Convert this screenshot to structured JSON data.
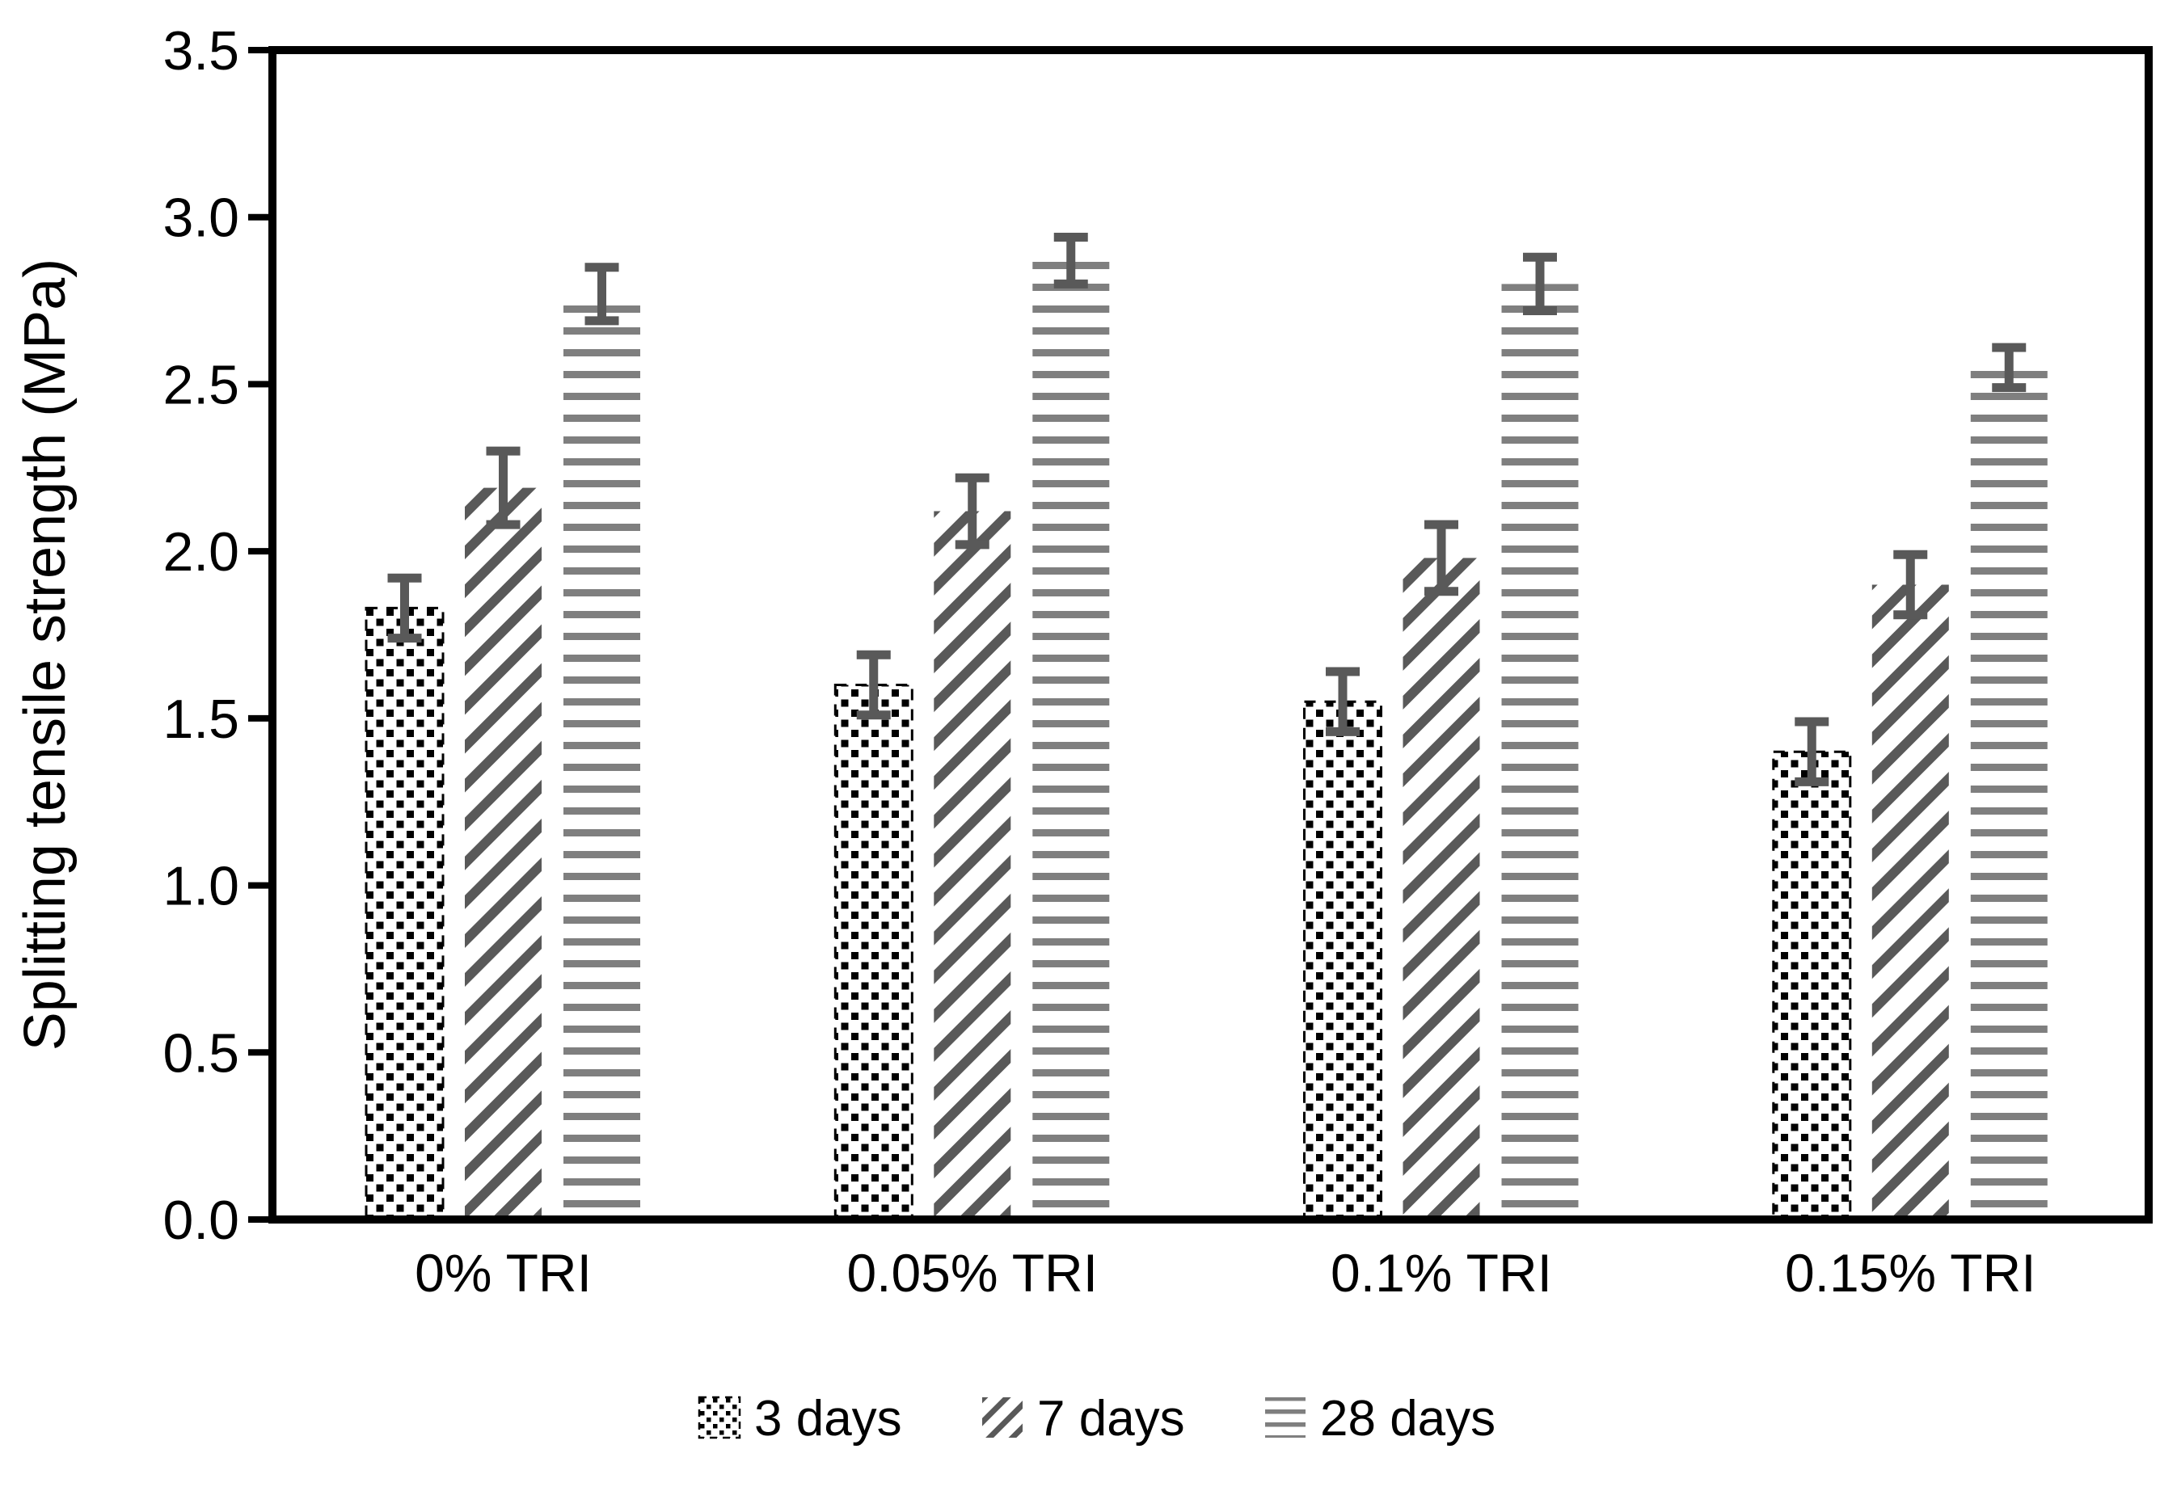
{
  "colors": {
    "black": "#000000",
    "dark_gray": "#595959",
    "mid_gray": "#7f7f7f",
    "background": "#ffffff"
  },
  "chart_data": {
    "type": "bar",
    "ylabel": "Splitting tensile strength (MPa)",
    "xlabel": "",
    "ylim": [
      0,
      3.5
    ],
    "ytick_step": 0.5,
    "ytick_labels": [
      "0.0",
      "0.5",
      "1.0",
      "1.5",
      "2.0",
      "2.5",
      "3.0",
      "3.5"
    ],
    "grid": false,
    "legend_position": "bottom",
    "categories": [
      "0% TRI",
      "0.05% TRI",
      "0.1% TRI",
      "0.15% TRI"
    ],
    "series": [
      {
        "name": "3 days",
        "pattern": "checkerboard-dots",
        "values": [
          1.83,
          1.6,
          1.55,
          1.4
        ],
        "errors": [
          0.09,
          0.09,
          0.09,
          0.09
        ]
      },
      {
        "name": "7 days",
        "pattern": "diagonal-stripes",
        "values": [
          2.19,
          2.12,
          1.98,
          1.9
        ],
        "errors": [
          0.11,
          0.1,
          0.1,
          0.09
        ]
      },
      {
        "name": "28 days",
        "pattern": "horizontal-stripes",
        "values": [
          2.77,
          2.87,
          2.8,
          2.55
        ],
        "errors": [
          0.08,
          0.07,
          0.08,
          0.06
        ]
      }
    ]
  }
}
